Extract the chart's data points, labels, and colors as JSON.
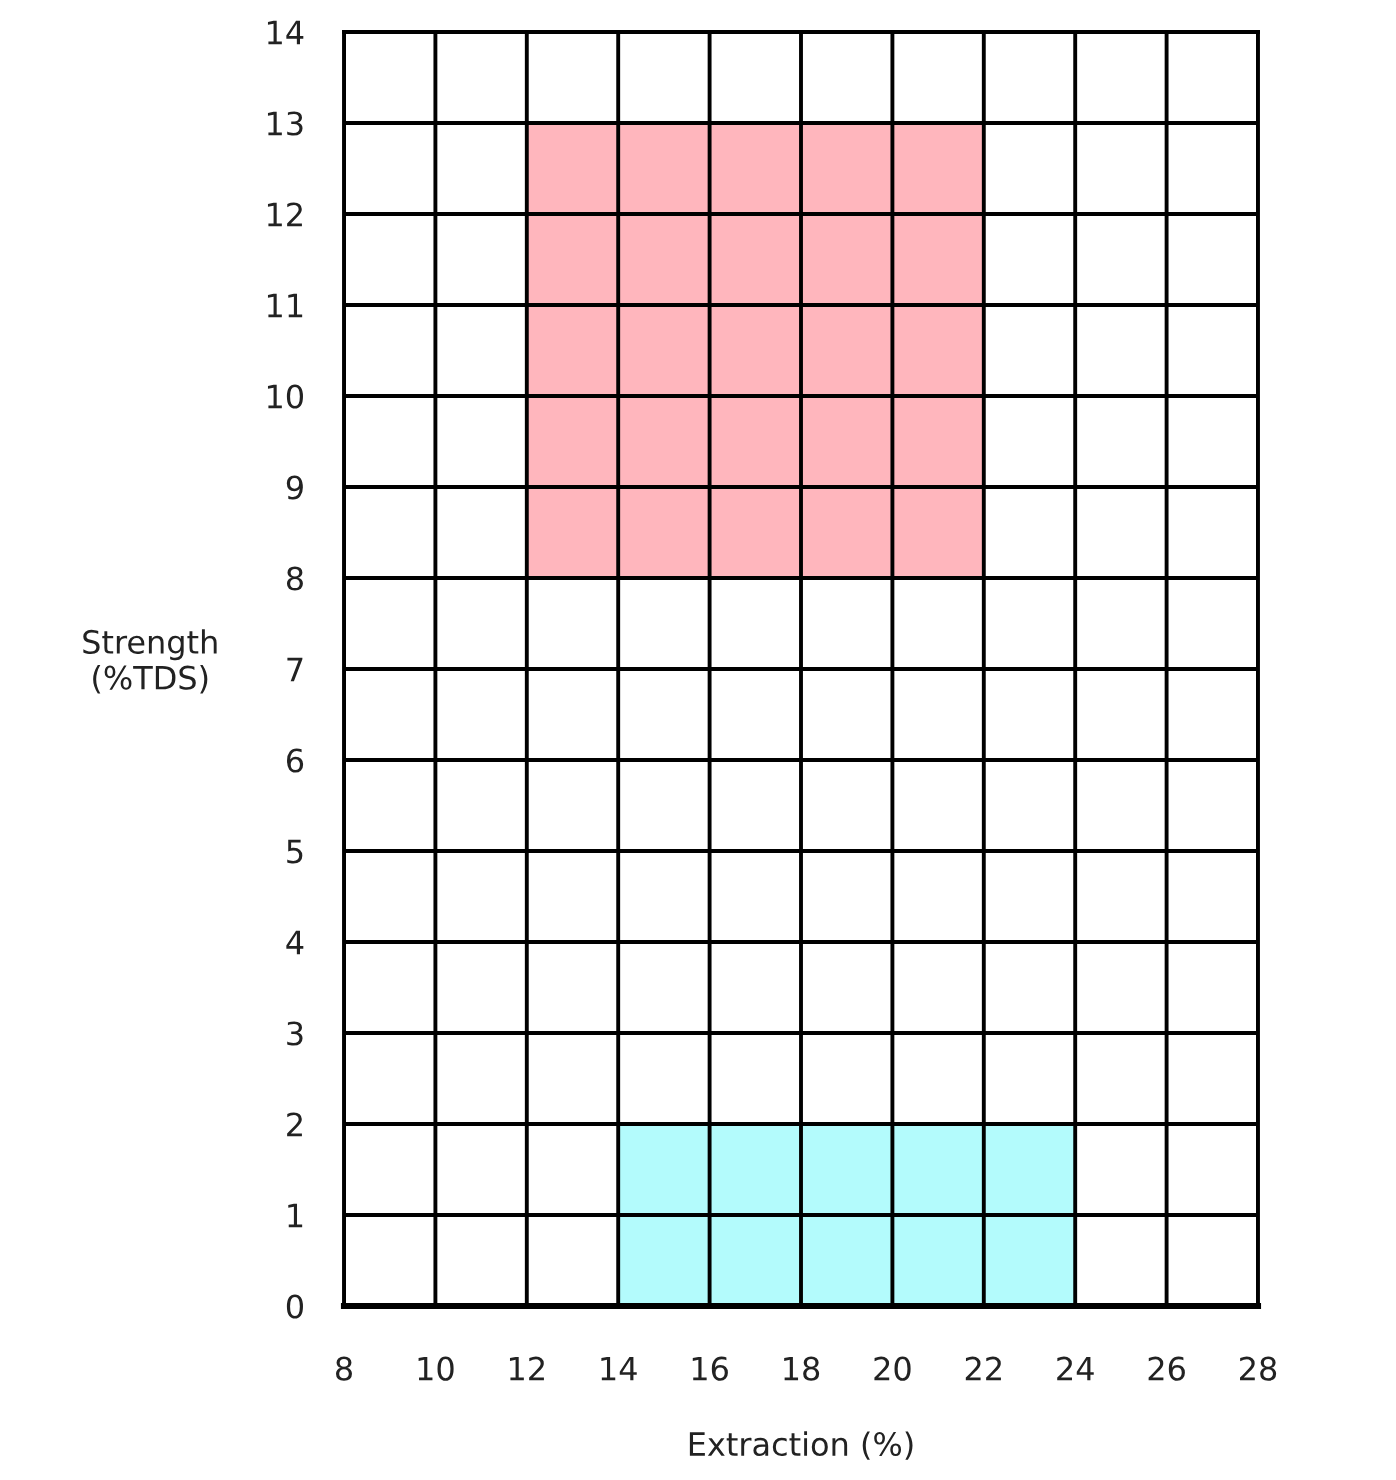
{
  "chart_data": {
    "type": "area",
    "xlabel": "Extraction (%)",
    "ylabel": "Strength\n(%TDS)",
    "series": [
      {
        "type": "line",
        "color": "#ffb6bd",
        "x": [
          12,
          22
        ],
        "values": [
          null,
          null
        ],
        "lower": [
          8,
          8
        ],
        "upper": [
          13,
          13
        ]
      },
      {
        "color": "#b3fbfc",
        "x": [
          14,
          24
        ],
        "values": [
          2,
          2
        ]
      }
    ],
    "xlim": [
      8,
      28
    ],
    "xticks": [
      8,
      10,
      12,
      14,
      16,
      18,
      20,
      22,
      24,
      26,
      28
    ],
    "ylim": [
      0,
      14
    ],
    "yticks": [
      0,
      1,
      2,
      3,
      4,
      5,
      6,
      7,
      8,
      9,
      10,
      11,
      12,
      13,
      14
    ],
    "grid": true
  }
}
